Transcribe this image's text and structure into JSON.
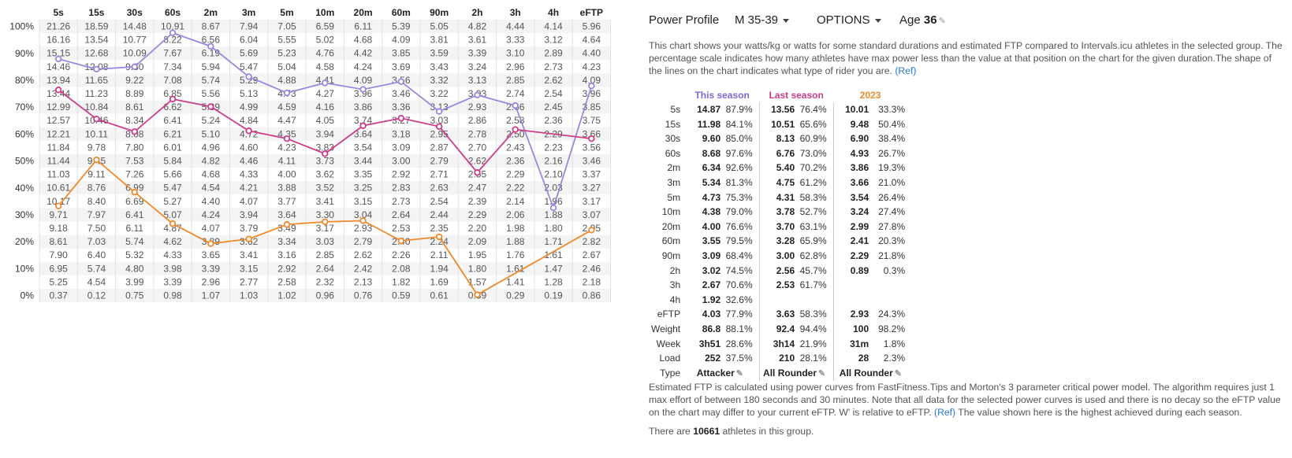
{
  "chart_data": {
    "type": "table",
    "columns": [
      "5s",
      "15s",
      "30s",
      "60s",
      "2m",
      "3m",
      "5m",
      "10m",
      "20m",
      "60m",
      "90m",
      "2h",
      "3h",
      "4h",
      "eFTP"
    ],
    "row_labels": [
      "100%",
      "90%",
      "80%",
      "70%",
      "60%",
      "50%",
      "40%",
      "30%",
      "20%",
      "10%",
      "0%"
    ],
    "rows": [
      [
        "21.26",
        "18.59",
        "14.48",
        "10.91",
        "8.67",
        "7.94",
        "7.05",
        "6.59",
        "6.11",
        "5.39",
        "5.05",
        "4.82",
        "4.44",
        "4.14",
        "5.96"
      ],
      [
        "16.16",
        "13.54",
        "10.77",
        "8.22",
        "6.56",
        "6.04",
        "5.55",
        "5.02",
        "4.68",
        "4.09",
        "3.81",
        "3.61",
        "3.33",
        "3.12",
        "4.64"
      ],
      [
        "15.15",
        "12.68",
        "10.09",
        "7.67",
        "6.19",
        "5.69",
        "5.23",
        "4.76",
        "4.42",
        "3.85",
        "3.59",
        "3.39",
        "3.10",
        "2.89",
        "4.40"
      ],
      [
        "14.46",
        "12.08",
        "9.60",
        "7.34",
        "5.94",
        "5.47",
        "5.04",
        "4.58",
        "4.24",
        "3.69",
        "3.43",
        "3.24",
        "2.96",
        "2.73",
        "4.23"
      ],
      [
        "13.94",
        "11.65",
        "9.22",
        "7.08",
        "5.74",
        "5.29",
        "4.88",
        "4.41",
        "4.09",
        "3.56",
        "3.32",
        "3.13",
        "2.85",
        "2.62",
        "4.09"
      ],
      [
        "13.44",
        "11.23",
        "8.89",
        "6.85",
        "5.56",
        "5.13",
        "4.73",
        "4.27",
        "3.96",
        "3.46",
        "3.22",
        "3.03",
        "2.74",
        "2.54",
        "3.96"
      ],
      [
        "12.99",
        "10.84",
        "8.61",
        "6.62",
        "5.39",
        "4.99",
        "4.59",
        "4.16",
        "3.86",
        "3.36",
        "3.13",
        "2.93",
        "2.66",
        "2.45",
        "3.85"
      ],
      [
        "12.57",
        "10.46",
        "8.34",
        "6.41",
        "5.24",
        "4.84",
        "4.47",
        "4.05",
        "3.74",
        "3.27",
        "3.03",
        "2.86",
        "2.58",
        "2.36",
        "3.75"
      ],
      [
        "12.21",
        "10.11",
        "8.08",
        "6.21",
        "5.10",
        "4.72",
        "4.35",
        "3.94",
        "3.64",
        "3.18",
        "2.95",
        "2.78",
        "2.50",
        "2.29",
        "3.66"
      ],
      [
        "11.84",
        "9.78",
        "7.80",
        "6.01",
        "4.96",
        "4.60",
        "4.23",
        "3.83",
        "3.54",
        "3.09",
        "2.87",
        "2.70",
        "2.43",
        "2.23",
        "3.56"
      ],
      [
        "11.44",
        "9.45",
        "7.53",
        "5.84",
        "4.82",
        "4.46",
        "4.11",
        "3.73",
        "3.44",
        "3.00",
        "2.79",
        "2.62",
        "2.36",
        "2.16",
        "3.46"
      ],
      [
        "11.03",
        "9.11",
        "7.26",
        "5.66",
        "4.68",
        "4.33",
        "4.00",
        "3.62",
        "3.35",
        "2.92",
        "2.71",
        "2.55",
        "2.29",
        "2.10",
        "3.37"
      ],
      [
        "10.61",
        "8.76",
        "6.99",
        "5.47",
        "4.54",
        "4.21",
        "3.88",
        "3.52",
        "3.25",
        "2.83",
        "2.63",
        "2.47",
        "2.22",
        "2.03",
        "3.27"
      ],
      [
        "10.17",
        "8.40",
        "6.69",
        "5.27",
        "4.40",
        "4.07",
        "3.77",
        "3.41",
        "3.15",
        "2.73",
        "2.54",
        "2.39",
        "2.14",
        "1.96",
        "3.17"
      ],
      [
        "9.71",
        "7.97",
        "6.41",
        "5.07",
        "4.24",
        "3.94",
        "3.64",
        "3.30",
        "3.04",
        "2.64",
        "2.44",
        "2.29",
        "2.06",
        "1.88",
        "3.07"
      ],
      [
        "9.18",
        "7.50",
        "6.11",
        "4.87",
        "4.07",
        "3.79",
        "3.49",
        "3.17",
        "2.93",
        "2.53",
        "2.35",
        "2.20",
        "1.98",
        "1.80",
        "2.95"
      ],
      [
        "8.61",
        "7.03",
        "5.74",
        "4.62",
        "3.89",
        "3.62",
        "3.34",
        "3.03",
        "2.79",
        "2.40",
        "2.24",
        "2.09",
        "1.88",
        "1.71",
        "2.82"
      ],
      [
        "7.90",
        "6.40",
        "5.32",
        "4.33",
        "3.65",
        "3.41",
        "3.16",
        "2.85",
        "2.62",
        "2.26",
        "2.11",
        "1.95",
        "1.76",
        "1.61",
        "2.67"
      ],
      [
        "6.95",
        "5.74",
        "4.80",
        "3.98",
        "3.39",
        "3.15",
        "2.92",
        "2.64",
        "2.42",
        "2.08",
        "1.94",
        "1.80",
        "1.61",
        "1.47",
        "2.46"
      ],
      [
        "5.25",
        "4.54",
        "3.99",
        "3.39",
        "2.96",
        "2.77",
        "2.58",
        "2.32",
        "2.13",
        "1.82",
        "1.69",
        "1.57",
        "1.41",
        "1.28",
        "2.18"
      ],
      [
        "0.37",
        "0.12",
        "0.75",
        "0.98",
        "1.07",
        "1.03",
        "1.02",
        "0.96",
        "0.76",
        "0.59",
        "0.61",
        "0.39",
        "0.29",
        "0.19",
        "0.86"
      ]
    ],
    "ylim": [
      0,
      100
    ],
    "series": [
      {
        "color": "#9b86e0",
        "values": [
          87.9,
          84.1,
          85.0,
          97.6,
          92.6,
          81.3,
          75.3,
          79.0,
          76.6,
          79.5,
          68.4,
          74.5,
          70.6,
          32.6,
          77.9
        ]
      },
      {
        "color": "#cc3d8a",
        "values": [
          76.4,
          65.6,
          60.9,
          73.0,
          70.2,
          61.2,
          58.3,
          52.7,
          63.1,
          65.9,
          62.8,
          45.7,
          61.7,
          null,
          58.3
        ]
      },
      {
        "color": "#f08a2c",
        "values": [
          33.3,
          50.4,
          38.4,
          26.7,
          19.3,
          21.0,
          26.4,
          27.4,
          27.8,
          20.3,
          21.8,
          0.3,
          null,
          null,
          24.3
        ]
      }
    ]
  },
  "header": {
    "title": "Power Profile",
    "group": "M 35-39",
    "options": "OPTIONS",
    "age_label": "Age",
    "age_value": "36"
  },
  "description": "This chart shows your watts/kg or watts for some standard durations and estimated FTP compared to Intervals.icu athletes in the selected group. The percentage scale indicates how many athletes have max power less than the value at that position on the chart for the given duration.The shape of the lines on the chart indicates what type of rider you are.",
  "ref_label": "(Ref)",
  "stats": {
    "headers": [
      "This season",
      "Last season",
      "2023"
    ],
    "header_colors": [
      "#7d68d8",
      "#cc3d8a",
      "#f08a2c"
    ],
    "rows": [
      {
        "label": "5s",
        "c": [
          [
            "14.87",
            "87.9%"
          ],
          [
            "13.56",
            "76.4%"
          ],
          [
            "10.01",
            "33.3%"
          ]
        ]
      },
      {
        "label": "15s",
        "c": [
          [
            "11.98",
            "84.1%"
          ],
          [
            "10.51",
            "65.6%"
          ],
          [
            "9.48",
            "50.4%"
          ]
        ]
      },
      {
        "label": "30s",
        "c": [
          [
            "9.60",
            "85.0%"
          ],
          [
            "8.13",
            "60.9%"
          ],
          [
            "6.90",
            "38.4%"
          ]
        ]
      },
      {
        "label": "60s",
        "c": [
          [
            "8.68",
            "97.6%"
          ],
          [
            "6.76",
            "73.0%"
          ],
          [
            "4.93",
            "26.7%"
          ]
        ]
      },
      {
        "label": "2m",
        "c": [
          [
            "6.34",
            "92.6%"
          ],
          [
            "5.40",
            "70.2%"
          ],
          [
            "3.86",
            "19.3%"
          ]
        ]
      },
      {
        "label": "3m",
        "c": [
          [
            "5.34",
            "81.3%"
          ],
          [
            "4.75",
            "61.2%"
          ],
          [
            "3.66",
            "21.0%"
          ]
        ]
      },
      {
        "label": "5m",
        "c": [
          [
            "4.73",
            "75.3%"
          ],
          [
            "4.31",
            "58.3%"
          ],
          [
            "3.54",
            "26.4%"
          ]
        ]
      },
      {
        "label": "10m",
        "c": [
          [
            "4.38",
            "79.0%"
          ],
          [
            "3.78",
            "52.7%"
          ],
          [
            "3.24",
            "27.4%"
          ]
        ]
      },
      {
        "label": "20m",
        "c": [
          [
            "4.00",
            "76.6%"
          ],
          [
            "3.70",
            "63.1%"
          ],
          [
            "2.99",
            "27.8%"
          ]
        ]
      },
      {
        "label": "60m",
        "c": [
          [
            "3.55",
            "79.5%"
          ],
          [
            "3.28",
            "65.9%"
          ],
          [
            "2.41",
            "20.3%"
          ]
        ]
      },
      {
        "label": "90m",
        "c": [
          [
            "3.09",
            "68.4%"
          ],
          [
            "3.00",
            "62.8%"
          ],
          [
            "2.29",
            "21.8%"
          ]
        ]
      },
      {
        "label": "2h",
        "c": [
          [
            "3.02",
            "74.5%"
          ],
          [
            "2.56",
            "45.7%"
          ],
          [
            "0.89",
            "0.3%"
          ]
        ]
      },
      {
        "label": "3h",
        "c": [
          [
            "2.67",
            "70.6%"
          ],
          [
            "2.53",
            "61.7%"
          ],
          [
            "",
            ""
          ]
        ]
      },
      {
        "label": "4h",
        "c": [
          [
            "1.92",
            "32.6%"
          ],
          [
            "",
            ""
          ],
          [
            "",
            ""
          ]
        ]
      },
      {
        "label": "eFTP",
        "c": [
          [
            "4.03",
            "77.9%"
          ],
          [
            "3.63",
            "58.3%"
          ],
          [
            "2.93",
            "24.3%"
          ]
        ]
      },
      {
        "label": "Weight",
        "c": [
          [
            "86.8",
            "88.1%"
          ],
          [
            "92.4",
            "94.4%"
          ],
          [
            "100",
            "98.2%"
          ]
        ]
      },
      {
        "label": "Week",
        "c": [
          [
            "3h51",
            "28.6%"
          ],
          [
            "3h14",
            "21.9%"
          ],
          [
            "31m",
            "1.8%"
          ]
        ]
      },
      {
        "label": "Load",
        "c": [
          [
            "252",
            "37.5%"
          ],
          [
            "210",
            "28.1%"
          ],
          [
            "28",
            "2.3%"
          ]
        ]
      }
    ],
    "type_label": "Type",
    "types": [
      "Attacker",
      "All Rounder",
      "All Rounder"
    ]
  },
  "eftp_note": "Estimated FTP is calculated using power curves from FastFitness.Tips and Morton's 3 parameter critical power model. The algorithm requires just 1 max effort of between 180 seconds and 30 minutes. Note that all data for the selected power curves is used and there is no decay so the eFTP value on the chart may differ to your current eFTP. W' is relative to eFTP.",
  "eftp_note_tail": "The value shown here is the highest achieved during each season.",
  "athletes": {
    "prefix": "There are",
    "count": "10661",
    "suffix": "athletes in this group."
  }
}
